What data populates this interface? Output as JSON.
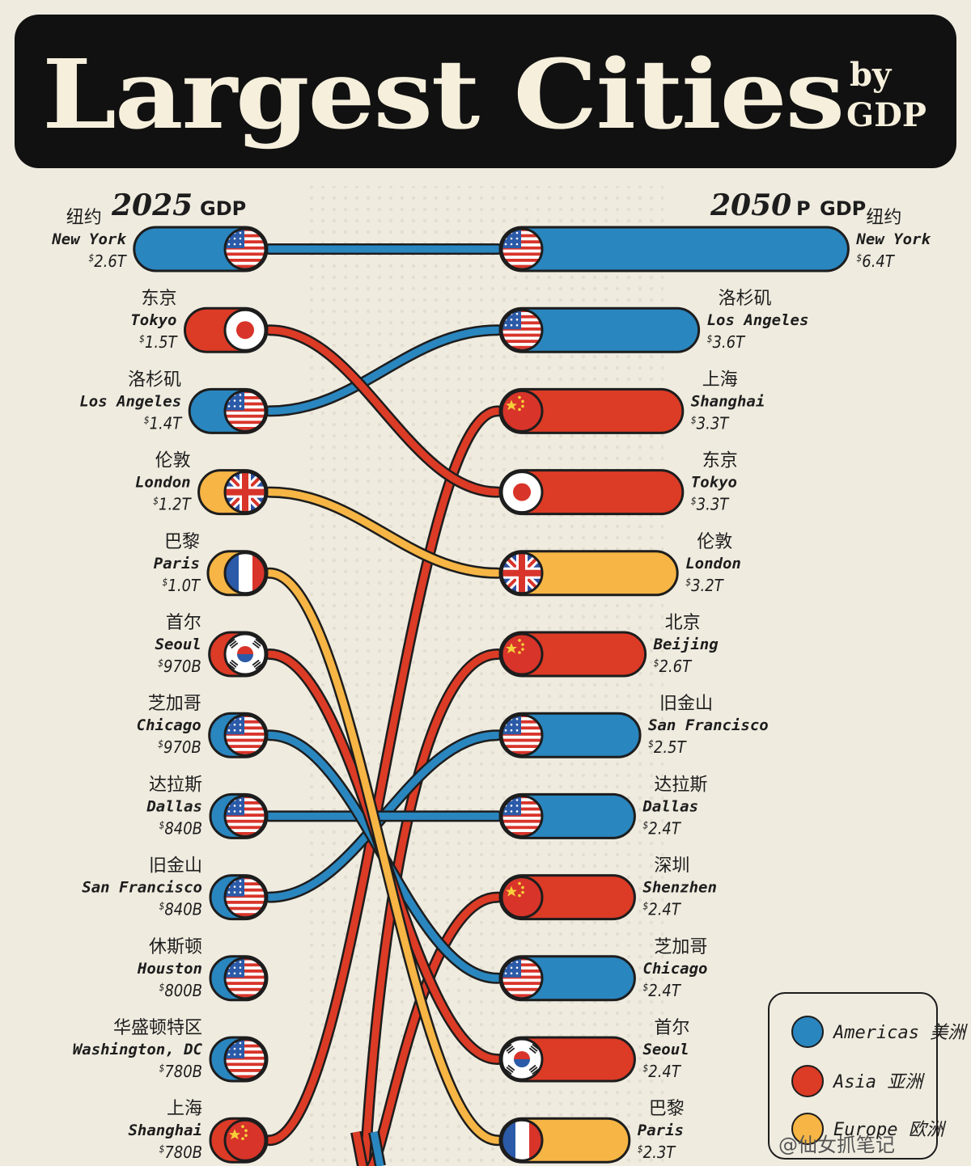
{
  "title": {
    "main": "Largest Cities",
    "by": "by",
    "gdp": "GDP"
  },
  "headers": {
    "left_year": "2025",
    "left_suffix": "GDP",
    "right_year": "2050",
    "right_p": "P",
    "right_suffix": "GDP"
  },
  "colors": {
    "Americas": "#2a86bf",
    "Asia": "#dc3b26",
    "Europe": "#f6b544",
    "outline": "#1d1d1d",
    "bg": "#efebdf"
  },
  "legend": [
    {
      "region": "Americas",
      "label": "Americas 美洲"
    },
    {
      "region": "Asia",
      "label": "Asia 亚洲"
    },
    {
      "region": "Europe",
      "label": "Europe 欧洲"
    }
  ],
  "watermark": "@仙女抓笔记",
  "chart_data": {
    "type": "bar",
    "unit": "GDP",
    "year_2025": [
      {
        "cn": "纽约",
        "en": "New York",
        "value": "2.6T",
        "trillions": 2.6,
        "region": "Americas",
        "flag": "us-flag-icon"
      },
      {
        "cn": "东京",
        "en": "Tokyo",
        "value": "1.5T",
        "trillions": 1.5,
        "region": "Asia",
        "flag": "japan-flag-icon"
      },
      {
        "cn": "洛杉矶",
        "en": "Los Angeles",
        "value": "1.4T",
        "trillions": 1.4,
        "region": "Americas",
        "flag": "us-flag-icon"
      },
      {
        "cn": "伦敦",
        "en": "London",
        "value": "1.2T",
        "trillions": 1.2,
        "region": "Europe",
        "flag": "uk-flag-icon"
      },
      {
        "cn": "巴黎",
        "en": "Paris",
        "value": "1.0T",
        "trillions": 1.0,
        "region": "Europe",
        "flag": "france-flag-icon"
      },
      {
        "cn": "首尔",
        "en": "Seoul",
        "value": "970B",
        "trillions": 0.97,
        "region": "Asia",
        "flag": "korea-flag-icon"
      },
      {
        "cn": "芝加哥",
        "en": "Chicago",
        "value": "970B",
        "trillions": 0.97,
        "region": "Americas",
        "flag": "us-flag-icon"
      },
      {
        "cn": "达拉斯",
        "en": "Dallas",
        "value": "840B",
        "trillions": 0.84,
        "region": "Americas",
        "flag": "us-flag-icon"
      },
      {
        "cn": "旧金山",
        "en": "San Francisco",
        "value": "840B",
        "trillions": 0.84,
        "region": "Americas",
        "flag": "us-flag-icon"
      },
      {
        "cn": "休斯顿",
        "en": "Houston",
        "value": "800B",
        "trillions": 0.8,
        "region": "Americas",
        "flag": "us-flag-icon"
      },
      {
        "cn": "华盛顿特区",
        "en": "Washington, DC",
        "value": "780B",
        "trillions": 0.78,
        "region": "Americas",
        "flag": "us-flag-icon"
      },
      {
        "cn": "上海",
        "en": "Shanghai",
        "value": "780B",
        "trillions": 0.78,
        "region": "Asia",
        "flag": "china-flag-icon"
      }
    ],
    "year_2050": [
      {
        "cn": "纽约",
        "en": "New York",
        "value": "6.4T",
        "trillions": 6.4,
        "region": "Americas",
        "flag": "us-flag-icon",
        "from_2025_rank": 0
      },
      {
        "cn": "洛杉矶",
        "en": "Los Angeles",
        "value": "3.6T",
        "trillions": 3.6,
        "region": "Americas",
        "flag": "us-flag-icon",
        "from_2025_rank": 2
      },
      {
        "cn": "上海",
        "en": "Shanghai",
        "value": "3.3T",
        "trillions": 3.3,
        "region": "Asia",
        "flag": "china-flag-icon",
        "from_2025_rank": 11
      },
      {
        "cn": "东京",
        "en": "Tokyo",
        "value": "3.3T",
        "trillions": 3.3,
        "region": "Asia",
        "flag": "japan-flag-icon",
        "from_2025_rank": 1
      },
      {
        "cn": "伦敦",
        "en": "London",
        "value": "3.2T",
        "trillions": 3.2,
        "region": "Europe",
        "flag": "uk-flag-icon",
        "from_2025_rank": 3
      },
      {
        "cn": "北京",
        "en": "Beijing",
        "value": "2.6T",
        "trillions": 2.6,
        "region": "Asia",
        "flag": "china-flag-icon",
        "from_2025_rank": -1
      },
      {
        "cn": "旧金山",
        "en": "San Francisco",
        "value": "2.5T",
        "trillions": 2.5,
        "region": "Americas",
        "flag": "us-flag-icon",
        "from_2025_rank": 8
      },
      {
        "cn": "达拉斯",
        "en": "Dallas",
        "value": "2.4T",
        "trillions": 2.4,
        "region": "Americas",
        "flag": "us-flag-icon",
        "from_2025_rank": 7
      },
      {
        "cn": "深圳",
        "en": "Shenzhen",
        "value": "2.4T",
        "trillions": 2.4,
        "region": "Asia",
        "flag": "china-flag-icon",
        "from_2025_rank": -1
      },
      {
        "cn": "芝加哥",
        "en": "Chicago",
        "value": "2.4T",
        "trillions": 2.4,
        "region": "Americas",
        "flag": "us-flag-icon",
        "from_2025_rank": 6
      },
      {
        "cn": "首尔",
        "en": "Seoul",
        "value": "2.4T",
        "trillions": 2.4,
        "region": "Asia",
        "flag": "korea-flag-icon",
        "from_2025_rank": 5
      },
      {
        "cn": "巴黎",
        "en": "Paris",
        "value": "2.3T",
        "trillions": 2.3,
        "region": "Europe",
        "flag": "france-flag-icon",
        "from_2025_rank": 4
      }
    ]
  }
}
